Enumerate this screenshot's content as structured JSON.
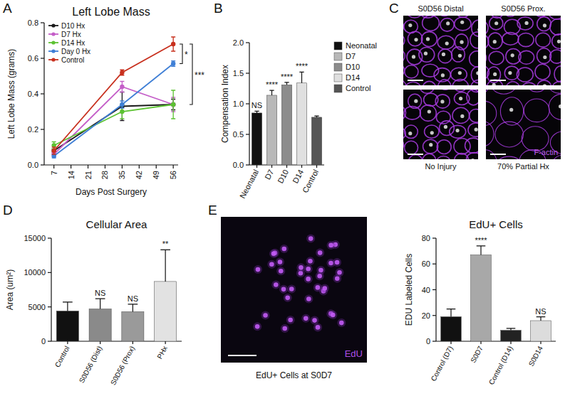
{
  "chart_data": [
    {
      "type": "line",
      "panel_label": "A",
      "title": "Left Lobe Mass",
      "x_label": "Days Post Surgery",
      "y_label": "Left Lobe Mass (grams)",
      "x": [
        7,
        35,
        56
      ],
      "series": [
        {
          "name": "D10 Hx",
          "color": "#1a1a1a",
          "marker": "circle",
          "values": [
            0.08,
            0.33,
            0.34
          ],
          "errors": [
            0.01,
            0.08,
            0.03
          ]
        },
        {
          "name": "D7 Hx",
          "color": "#c45ec8",
          "marker": "circle",
          "values": [
            0.06,
            0.44,
            0.34
          ],
          "errors": [
            0.01,
            0.03,
            0.04
          ]
        },
        {
          "name": "D14 Hx",
          "color": "#5cc232",
          "marker": "circle",
          "values": [
            0.11,
            0.3,
            0.34
          ],
          "errors": [
            0.02,
            0.04,
            0.08
          ]
        },
        {
          "name": "Day 0 Hx",
          "color": "#3f7fd6",
          "marker": "circle",
          "values": [
            0.05,
            0.34,
            0.57
          ],
          "errors": [
            0.01,
            0.02,
            0.015
          ]
        },
        {
          "name": "Control",
          "color": "#c8301e",
          "marker": "circle",
          "values": [
            0.08,
            0.52,
            0.68
          ],
          "errors": [
            0.02,
            0.015,
            0.04
          ]
        }
      ],
      "xlim": [
        3,
        58
      ],
      "xticks": [
        7,
        14,
        21,
        28,
        35,
        42,
        49,
        56
      ],
      "ylim": [
        0,
        0.8
      ],
      "yticks": [
        {
          "value": 0,
          "label": "0.0"
        },
        0.2,
        0.4,
        0.6,
        0.8
      ],
      "grid": false,
      "legend": "upper left",
      "annotations": [
        {
          "text": "*",
          "from": "Control",
          "to": "Day 0 Hx"
        },
        {
          "text": "***",
          "from": "Control",
          "to": "D10 Hx"
        }
      ]
    },
    {
      "type": "bar",
      "panel_label": "B",
      "y_label": "Compensation Index",
      "categories": [
        "Neonatal",
        "D7",
        "D10",
        "D14",
        "Control"
      ],
      "values": [
        0.85,
        1.14,
        1.31,
        1.34,
        0.78
      ],
      "errors": [
        0.03,
        0.08,
        0.04,
        0.18,
        0.02
      ],
      "significance": [
        "NS",
        "****",
        "****",
        "****",
        null
      ],
      "colors": [
        "#111111",
        "#b8b8b8",
        "#8c8c8c",
        "#e0e0e0",
        "#555555"
      ],
      "ylim": [
        0,
        2
      ],
      "yticks": [
        {
          "value": 0,
          "label": "0.0"
        },
        0.5,
        {
          "value": 1,
          "label": "1.0"
        },
        1.5,
        {
          "value": 2,
          "label": "2.0"
        }
      ],
      "grid": false,
      "legend": "upper right"
    },
    {
      "type": "image",
      "panel_label": "C",
      "labels": [
        "S0D56 Distal",
        "S0D56 Prox.",
        "No Injury",
        "70% Partial Hx"
      ],
      "stain": "F-actin"
    },
    {
      "type": "bar",
      "panel_label": "D",
      "title": "Cellular Area",
      "y_label": "Area (um²)",
      "categories": [
        "Control",
        "S0D56 (Dist)",
        "S0D56 (Prox)",
        "PHx"
      ],
      "values": [
        4400,
        4700,
        4300,
        8700
      ],
      "errors": [
        1300,
        1500,
        1100,
        4600
      ],
      "significance": [
        null,
        "NS",
        "NS",
        "**"
      ],
      "colors": [
        "#111111",
        "#8a8a8a",
        "#9a9a9a",
        "#e2e2e2"
      ],
      "ylim": [
        0,
        15000
      ],
      "yticks": [
        0,
        5000,
        10000,
        15000
      ],
      "grid": false
    },
    {
      "type": "bar",
      "panel_label": "E",
      "title": "EdU+ Cells",
      "y_label": "EDU Labeled Cells",
      "categories": [
        "Control (D7)",
        "S0D7",
        "Control (D14)",
        "S0D14"
      ],
      "values": [
        19,
        67,
        8.5,
        16
      ],
      "errors": [
        6,
        7,
        1.5,
        3
      ],
      "significance": [
        null,
        "****",
        null,
        "NS"
      ],
      "colors": [
        "#111111",
        "#a8a8a8",
        "#222222",
        "#dcdcdc"
      ],
      "ylim": [
        0,
        80
      ],
      "yticks": [
        0,
        20,
        40,
        60,
        80
      ],
      "grid": false,
      "image_caption": "EdU+ Cells at S0D7",
      "image_stain": "EdU"
    }
  ]
}
